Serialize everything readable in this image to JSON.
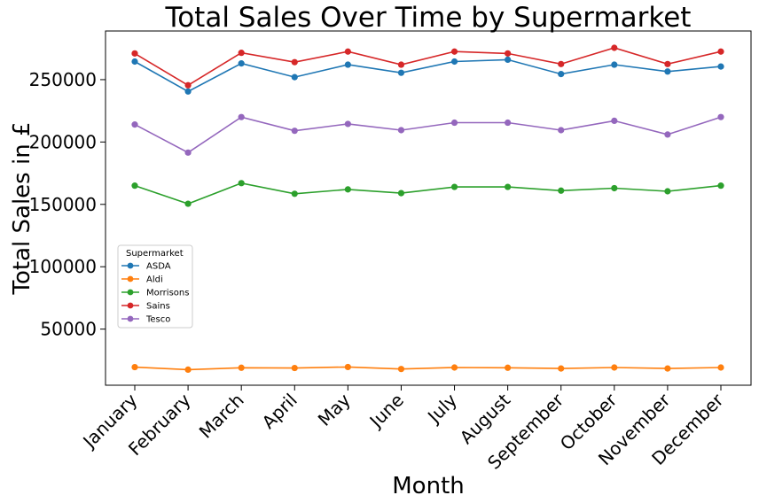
{
  "chart_data": {
    "type": "line",
    "title": "Total Sales Over Time by Supermarket",
    "xlabel": "Month",
    "ylabel": "Total Sales in £",
    "categories": [
      "January",
      "February",
      "March",
      "April",
      "May",
      "June",
      "July",
      "August",
      "September",
      "October",
      "November",
      "December"
    ],
    "y_ticks": [
      50000,
      100000,
      150000,
      200000,
      250000
    ],
    "ylim": [
      5000,
      289000
    ],
    "grid": false,
    "legend": {
      "title": "Supermarket",
      "placement": "center-left"
    },
    "series": [
      {
        "name": "ASDA",
        "color": "#1f77b4",
        "values": [
          264500,
          240500,
          263000,
          252000,
          262000,
          255500,
          264500,
          266000,
          254500,
          262000,
          256500,
          260500
        ]
      },
      {
        "name": "Aldi",
        "color": "#ff7f0e",
        "values": [
          19500,
          17500,
          19000,
          18800,
          19600,
          18000,
          19200,
          19000,
          18400,
          19200,
          18400,
          19200
        ]
      },
      {
        "name": "Morrisons",
        "color": "#2ca02c",
        "values": [
          165000,
          150500,
          167000,
          158500,
          162000,
          159000,
          164000,
          164000,
          161000,
          163000,
          160500,
          165000
        ]
      },
      {
        "name": "Sains",
        "color": "#d62728",
        "values": [
          271000,
          245500,
          271500,
          264000,
          272500,
          262000,
          272500,
          271000,
          262500,
          275500,
          262500,
          272500
        ]
      },
      {
        "name": "Tesco",
        "color": "#9467bd",
        "values": [
          214000,
          191500,
          220000,
          209000,
          214500,
          209500,
          215500,
          215500,
          209500,
          217000,
          206000,
          220000
        ]
      }
    ]
  }
}
